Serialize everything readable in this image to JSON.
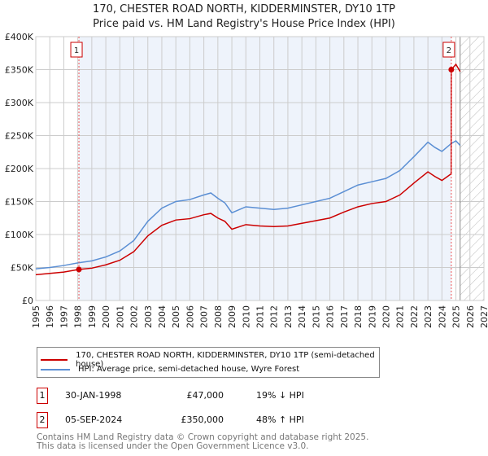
{
  "title": "170, CHESTER ROAD NORTH, KIDDERMINSTER, DY10 1TP",
  "subtitle": "Price paid vs. HM Land Registry's House Price Index (HPI)",
  "chart_data": {
    "type": "line",
    "xlim": [
      1995,
      2027
    ],
    "ylim": [
      0,
      400000
    ],
    "x_ticks": [
      "1995",
      "1996",
      "1997",
      "1998",
      "1999",
      "2000",
      "2001",
      "2002",
      "2003",
      "2004",
      "2005",
      "2006",
      "2007",
      "2008",
      "2009",
      "2010",
      "2011",
      "2012",
      "2013",
      "2014",
      "2015",
      "2016",
      "2017",
      "2018",
      "2019",
      "2020",
      "2021",
      "2022",
      "2023",
      "2024",
      "2025",
      "2026",
      "2027"
    ],
    "y_ticks": [
      {
        "v": 0,
        "label": "£0"
      },
      {
        "v": 50000,
        "label": "£50K"
      },
      {
        "v": 100000,
        "label": "£100K"
      },
      {
        "v": 150000,
        "label": "£150K"
      },
      {
        "v": 200000,
        "label": "£200K"
      },
      {
        "v": 250000,
        "label": "£250K"
      },
      {
        "v": 300000,
        "label": "£300K"
      },
      {
        "v": 350000,
        "label": "£350K"
      },
      {
        "v": 400000,
        "label": "£400K"
      }
    ],
    "forecast_from": 2025.3,
    "series": [
      {
        "name": "170, CHESTER ROAD NORTH, KIDDERMINSTER, DY10 1TP (semi-detached house)",
        "color": "#cc0000",
        "x": [
          1995,
          1996,
          1997,
          1998.08,
          1999,
          2000,
          2001,
          2002,
          2003,
          2004,
          2005,
          2006,
          2007,
          2007.5,
          2008,
          2008.5,
          2009,
          2010,
          2011,
          2012,
          2013,
          2014,
          2015,
          2016,
          2017,
          2018,
          2019,
          2020,
          2021,
          2022,
          2023,
          2023.5,
          2024,
          2024.66,
          2024.67,
          2025,
          2025.3
        ],
        "y": [
          39000,
          41000,
          43000,
          47000,
          49000,
          54000,
          61000,
          74000,
          98000,
          114000,
          122000,
          124000,
          130000,
          132000,
          125000,
          120000,
          108000,
          115000,
          113000,
          112000,
          113000,
          117000,
          121000,
          125000,
          134000,
          142000,
          147000,
          150000,
          160000,
          178000,
          195000,
          188000,
          182000,
          192000,
          350000,
          358000,
          347000
        ]
      },
      {
        "name": "HPI: Average price, semi-detached house, Wyre Forest",
        "color": "#5b8fd4",
        "x": [
          1995,
          1996,
          1997,
          1998,
          1999,
          2000,
          2001,
          2002,
          2003,
          2004,
          2005,
          2006,
          2007,
          2007.5,
          2008,
          2008.5,
          2009,
          2010,
          2011,
          2012,
          2013,
          2014,
          2015,
          2016,
          2017,
          2018,
          2019,
          2020,
          2021,
          2022,
          2023,
          2023.5,
          2024,
          2024.67,
          2025,
          2025.3
        ],
        "y": [
          48000,
          50000,
          53000,
          57000,
          60000,
          66000,
          75000,
          91000,
          120000,
          140000,
          150000,
          153000,
          160000,
          163000,
          155000,
          148000,
          133000,
          142000,
          140000,
          138000,
          140000,
          145000,
          150000,
          155000,
          165000,
          175000,
          180000,
          185000,
          197000,
          218000,
          240000,
          232000,
          226000,
          238000,
          242000,
          235000
        ]
      }
    ],
    "annotations": [
      {
        "label": "1",
        "x": 1998.08,
        "y": 47000
      },
      {
        "label": "2",
        "x": 2024.67,
        "y": 350000
      }
    ]
  },
  "legend": {
    "red": "170, CHESTER ROAD NORTH, KIDDERMINSTER, DY10 1TP (semi-detached house)",
    "blue": "HPI: Average price, semi-detached house, Wyre Forest"
  },
  "sales": [
    {
      "num": "1",
      "date": "30-JAN-1998",
      "price": "£47,000",
      "hpi": "19% ↓ HPI"
    },
    {
      "num": "2",
      "date": "05-SEP-2024",
      "price": "£350,000",
      "hpi": "48% ↑ HPI"
    }
  ],
  "footer": [
    "Contains HM Land Registry data © Crown copyright and database right 2025.",
    "This data is licensed under the Open Government Licence v3.0."
  ]
}
